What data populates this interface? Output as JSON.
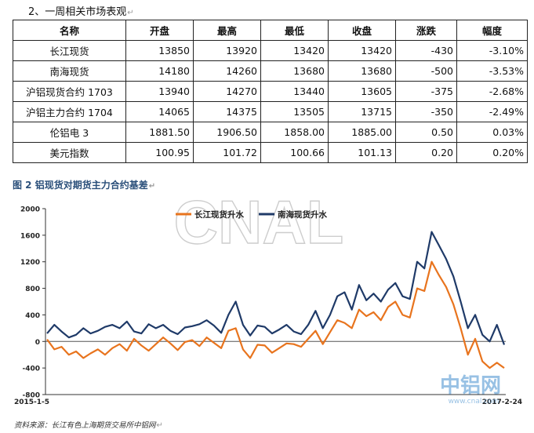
{
  "section_title": "2、一周相关市场表观",
  "table": {
    "headers": [
      "名称",
      "开盘",
      "最高",
      "最低",
      "收盘",
      "涨跌",
      "幅度"
    ],
    "rows": [
      [
        "长江现货",
        "13850",
        "13920",
        "13420",
        "13420",
        "-430",
        "-3.10%"
      ],
      [
        "南海现货",
        "14180",
        "14260",
        "13680",
        "13680",
        "-500",
        "-3.53%"
      ],
      [
        "沪铝现货合约 1703",
        "13940",
        "14270",
        "13440",
        "13605",
        "-375",
        "-2.68%"
      ],
      [
        "沪铝主力合约 1704",
        "14065",
        "14375",
        "13505",
        "13715",
        "-350",
        "-2.49%"
      ],
      [
        "伦铝电 3",
        "1881.50",
        "1906.50",
        "1858.00",
        "1885.00",
        "0.50",
        "0.03%"
      ],
      [
        "美元指数",
        "100.95",
        "101.72",
        "100.66",
        "101.13",
        "0.20",
        "0.20%"
      ]
    ]
  },
  "figure_title": "图 2 铝现货对期货主力合约基差",
  "watermark": "CNAL",
  "logo": {
    "cn": "中铝网",
    "url": "www.cnal.com"
  },
  "source_note": "资料来源：长江有色上海期货交易所中铝网",
  "colors": {
    "changjiang": "#e8741e",
    "nanhai": "#1f3a68",
    "fig_title": "#2a4f7a"
  },
  "chart_data": {
    "type": "line",
    "x_start_label": "2015-1-5",
    "x_end_label": "2017-2-24",
    "ylim": [
      -800,
      2000
    ],
    "yticks": [
      -800,
      -400,
      0,
      400,
      800,
      1200,
      1600,
      2000
    ],
    "grid": false,
    "legend_position": "top-center",
    "series": [
      {
        "name": "长江现货升水",
        "color": "#e8741e",
        "values": [
          30,
          -120,
          -80,
          -200,
          -150,
          -250,
          -180,
          -120,
          -200,
          -100,
          -40,
          -140,
          40,
          -60,
          -140,
          -40,
          60,
          -30,
          -130,
          -10,
          20,
          -70,
          60,
          -20,
          -100,
          160,
          200,
          -120,
          -250,
          -50,
          -60,
          -170,
          -100,
          -30,
          -40,
          -80,
          40,
          160,
          -40,
          140,
          320,
          280,
          200,
          480,
          380,
          440,
          320,
          520,
          600,
          400,
          360,
          800,
          760,
          1200,
          1000,
          820,
          560,
          200,
          -200,
          40,
          -300,
          -400,
          -320,
          -400
        ]
      },
      {
        "name": "南海现货升水",
        "color": "#1f3a68",
        "values": [
          120,
          250,
          150,
          60,
          100,
          200,
          120,
          160,
          220,
          250,
          200,
          300,
          150,
          120,
          260,
          200,
          250,
          160,
          110,
          210,
          230,
          260,
          320,
          240,
          130,
          400,
          600,
          250,
          90,
          240,
          220,
          120,
          180,
          250,
          150,
          110,
          250,
          460,
          200,
          400,
          680,
          740,
          480,
          850,
          620,
          720,
          600,
          780,
          880,
          680,
          640,
          1200,
          1100,
          1650,
          1450,
          1240,
          980,
          600,
          200,
          400,
          100,
          0,
          250,
          -50
        ]
      }
    ]
  }
}
